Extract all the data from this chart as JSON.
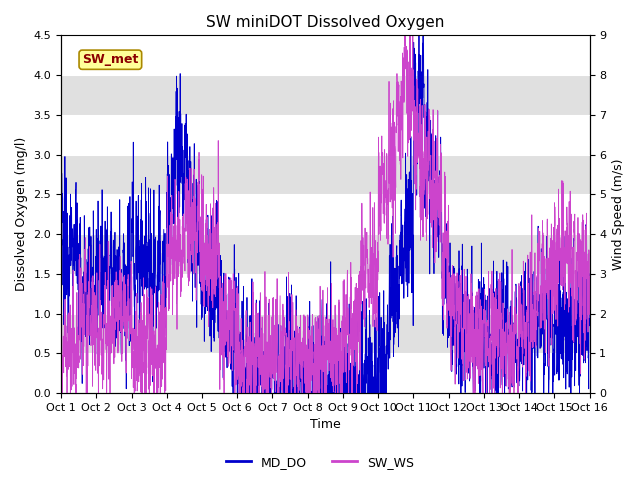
{
  "title": "SW miniDOT Dissolved Oxygen",
  "xlabel": "Time",
  "ylabel_left": "Dissolved Oxygen (mg/l)",
  "ylabel_right": "Wind Speed (m/s)",
  "ylim_left": [
    0.0,
    4.5
  ],
  "ylim_right": [
    0.0,
    9.0
  ],
  "yticks_left": [
    0.0,
    0.5,
    1.0,
    1.5,
    2.0,
    2.5,
    3.0,
    3.5,
    4.0,
    4.5
  ],
  "yticks_right": [
    0.0,
    1.0,
    2.0,
    3.0,
    4.0,
    5.0,
    6.0,
    7.0,
    8.0,
    9.0
  ],
  "xtick_labels": [
    "Oct 1",
    "Oct 2",
    "Oct 3",
    "Oct 4",
    "Oct 5",
    "Oct 6",
    "Oct 7",
    "Oct 8",
    "Oct 9",
    "Oct 10",
    "Oct 11",
    "Oct 12",
    "Oct 13",
    "Oct 14",
    "Oct 15",
    "Oct 16"
  ],
  "legend_labels": [
    "MD_DO",
    "SW_WS"
  ],
  "color_md_do": "#0000cc",
  "color_sw_ws": "#cc44cc",
  "annotation_text": "SW_met",
  "annotation_color": "#8b0000",
  "annotation_bg": "#ffff99",
  "annotation_border": "#aa8800",
  "n_points": 3000,
  "band_color": "#e0e0e0",
  "title_fontsize": 11,
  "label_fontsize": 9,
  "tick_fontsize": 8,
  "legend_fontsize": 9,
  "linewidth": 0.6
}
